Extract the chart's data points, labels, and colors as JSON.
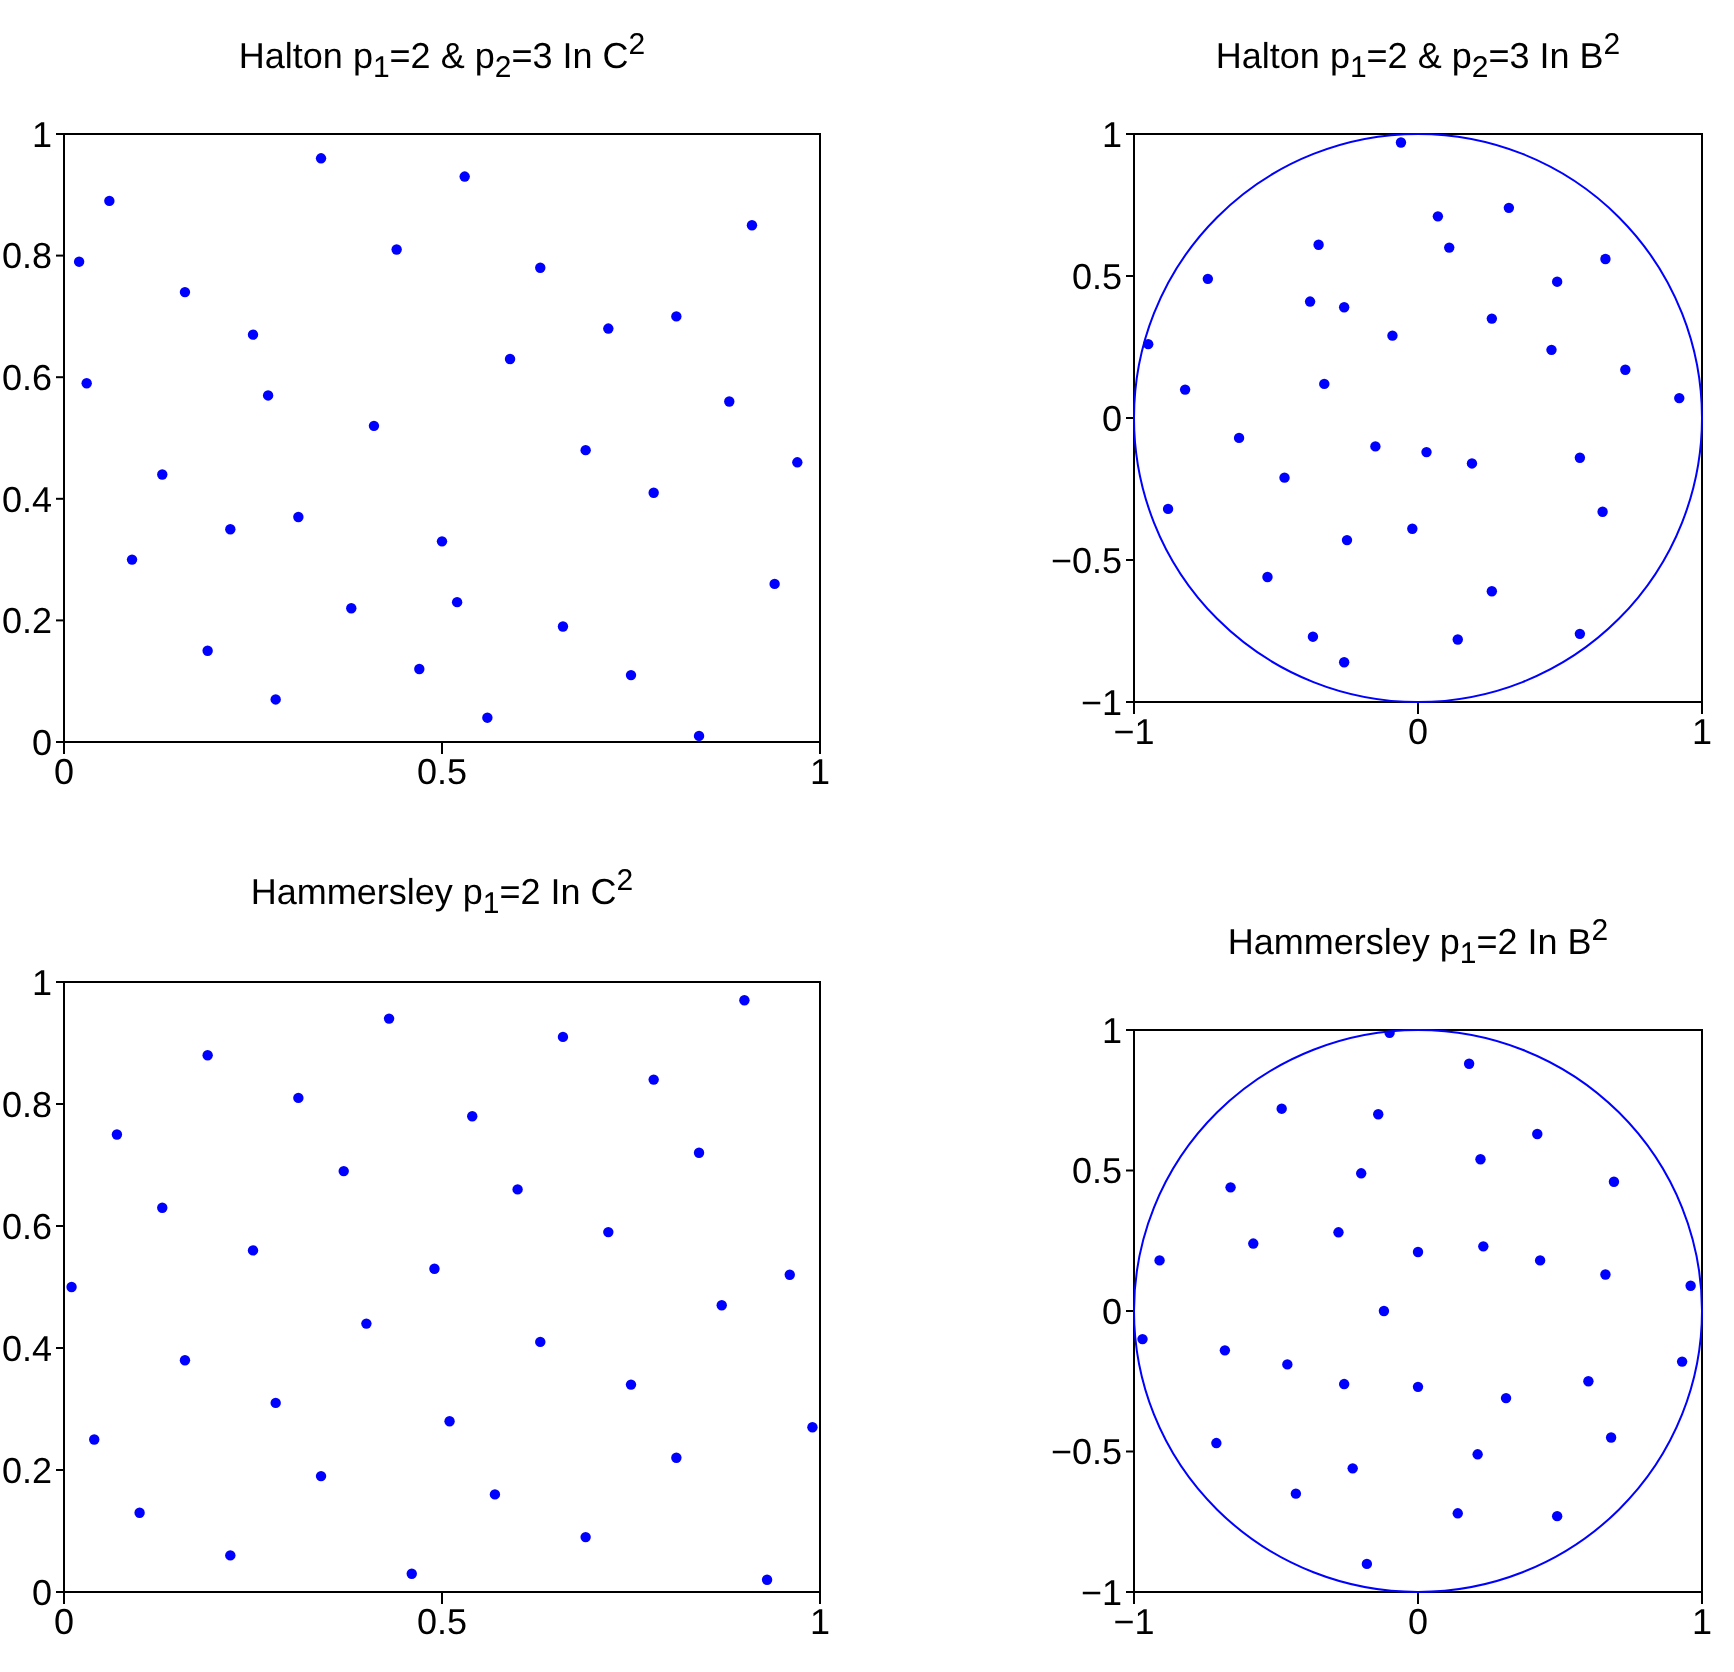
{
  "chart_data": [
    {
      "type": "scatter",
      "title": "Halton p$_{1}$=2 & p$_{2}$=3 In C$^{2}$",
      "marker": "circle",
      "xlim": [
        0,
        1
      ],
      "ylim": [
        0,
        1
      ],
      "xticks": [
        0,
        0.5,
        1
      ],
      "yticks": [
        0,
        0.2,
        0.4,
        0.6,
        0.8,
        1
      ],
      "series": [
        {
          "color": "#0000ff",
          "x": [
            0.5,
            0.25,
            0.75,
            0.13,
            0.63,
            0.38,
            0.88,
            0.06,
            0.56,
            0.31,
            0.81,
            0.19,
            0.69,
            0.44,
            0.94,
            0.03,
            0.53,
            0.28,
            0.78,
            0.16,
            0.66,
            0.41,
            0.91,
            0.09,
            0.59,
            0.34,
            0.84,
            0.22,
            0.72,
            0.47,
            0.97,
            0.02,
            0.52,
            0.27
          ],
          "values": [
            0.33,
            0.67,
            0.11,
            0.44,
            0.78,
            0.22,
            0.56,
            0.89,
            0.04,
            0.37,
            0.7,
            0.15,
            0.48,
            0.81,
            0.26,
            0.59,
            0.93,
            0.07,
            0.41,
            0.74,
            0.19,
            0.52,
            0.85,
            0.3,
            0.63,
            0.96,
            0.01,
            0.35,
            0.68,
            0.12,
            0.46,
            0.79,
            0.23,
            0.57
          ]
        }
      ]
    },
    {
      "type": "scatter",
      "title": "Halton p$_{1}$=2 & p$_{2}$=3 In B$^{2}$",
      "marker": "circle",
      "xlim": [
        -1,
        1
      ],
      "ylim": [
        -1,
        1
      ],
      "xticks": [
        -1,
        0,
        1
      ],
      "yticks": [
        -1,
        -0.5,
        0,
        0.5,
        1
      ],
      "series": [
        {
          "color": "#0000ff",
          "x": [
            -0.35,
            -0.25,
            0.66,
            -0.33,
            0.14,
            0.11,
            -0.88,
            0.19,
            0.73,
            -0.38,
            -0.26,
            0.26,
            -0.82,
            0.26,
            -0.06,
            -0.15,
            0.65,
            0.47,
            -0.74,
            -0.02,
            0.32,
            -0.63,
            0.57,
            -0.09,
            -0.53,
            0.57,
            0.92,
            -0.26,
            -0.37,
            0.49,
            -0.95,
            0.03,
            0.07,
            -0.47
          ],
          "values": [
            0.61,
            -0.43,
            0.56,
            0.12,
            -0.78,
            0.6,
            -0.32,
            -0.16,
            0.17,
            0.41,
            -0.86,
            0.35,
            0.1,
            -0.61,
            0.97,
            -0.1,
            -0.33,
            0.24,
            0.49,
            -0.39,
            0.74,
            -0.07,
            -0.76,
            0.29,
            -0.56,
            -0.14,
            0.07,
            0.39,
            -0.77,
            0.48,
            0.26,
            -0.12,
            0.71,
            -0.21
          ]
        }
      ]
    },
    {
      "type": "scatter",
      "title": "Hammersley p$_{1}$=2 In C$^{2}$",
      "marker": "circle",
      "xlim": [
        0,
        1
      ],
      "ylim": [
        0,
        1
      ],
      "xticks": [
        0,
        0.5,
        1
      ],
      "yticks": [
        0,
        0.2,
        0.4,
        0.6,
        0.8,
        1
      ],
      "series": [
        {
          "color": "#0000ff",
          "x": [
            0.01,
            0.04,
            0.07,
            0.1,
            0.13,
            0.16,
            0.19,
            0.22,
            0.25,
            0.28,
            0.31,
            0.34,
            0.37,
            0.4,
            0.43,
            0.46,
            0.49,
            0.51,
            0.54,
            0.57,
            0.6,
            0.63,
            0.66,
            0.69,
            0.72,
            0.75,
            0.78,
            0.81,
            0.84,
            0.87,
            0.9,
            0.93,
            0.96,
            0.99
          ],
          "values": [
            0.5,
            0.25,
            0.75,
            0.13,
            0.63,
            0.38,
            0.88,
            0.06,
            0.56,
            0.31,
            0.81,
            0.19,
            0.69,
            0.44,
            0.94,
            0.03,
            0.53,
            0.28,
            0.78,
            0.16,
            0.66,
            0.41,
            0.91,
            0.09,
            0.59,
            0.34,
            0.84,
            0.22,
            0.72,
            0.47,
            0.97,
            0.02,
            0.52,
            0.27
          ]
        }
      ]
    },
    {
      "type": "scatter",
      "title": "Hammersley p$_{1}$=2 In B$^{2}$",
      "marker": "circle",
      "xlim": [
        -1,
        1
      ],
      "ylim": [
        -1,
        1
      ],
      "xticks": [
        -1,
        0,
        1
      ],
      "yticks": [
        -1,
        -0.5,
        0,
        0.5,
        1
      ],
      "series": [
        {
          "color": "#0000ff",
          "x": [
            -0.12,
            0,
            0,
            0.23,
            -0.26,
            -0.28,
            0.31,
            0.43,
            -0.46,
            -0.2,
            0.21,
            0.22,
            -0.23,
            -0.58,
            0.6,
            0.66,
            -0.68,
            -0.14,
            0.14,
            0.42,
            -0.43,
            -0.66,
            0.68,
            0.69,
            -0.71,
            -0.48,
            0.49,
            0.18,
            -0.18,
            -0.91,
            0.93,
            0.96,
            -0.97,
            -0.1
          ],
          "values": [
            0,
            0.21,
            -0.27,
            0.23,
            -0.26,
            0.28,
            -0.31,
            0.18,
            -0.19,
            0.49,
            -0.51,
            0.54,
            -0.56,
            0.24,
            -0.25,
            0.13,
            -0.14,
            0.7,
            -0.72,
            0.63,
            -0.65,
            0.44,
            -0.45,
            0.46,
            -0.47,
            0.72,
            -0.73,
            0.88,
            -0.9,
            0.18,
            -0.18,
            0.09,
            -0.1,
            0.99
          ]
        }
      ]
    }
  ]
}
